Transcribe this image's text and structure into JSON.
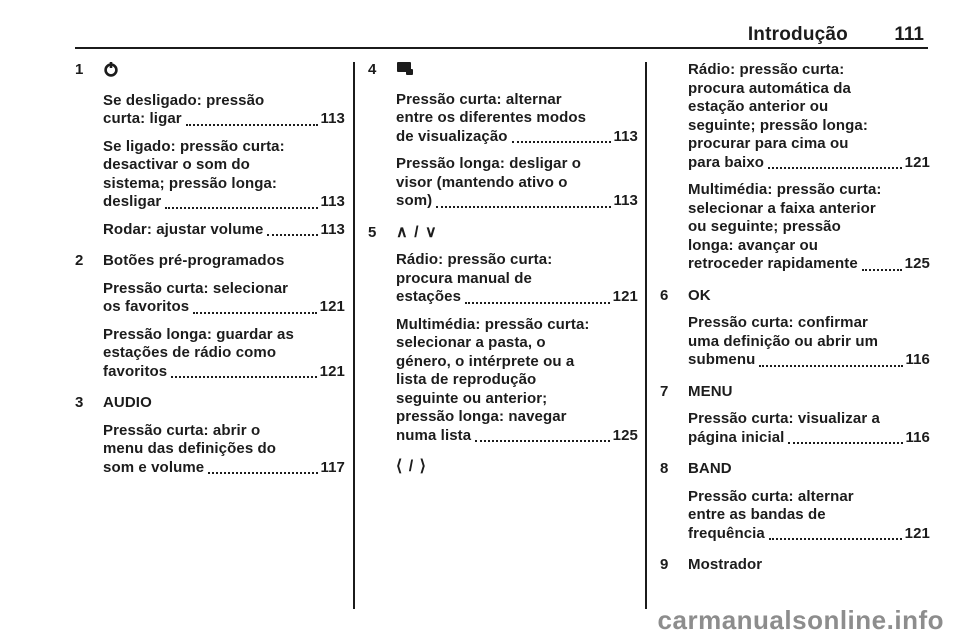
{
  "header": {
    "section_title": "Introdução",
    "page_number": "111"
  },
  "watermark": "carmanualsonline.info",
  "colors": {
    "text": "#1c1c1c",
    "rule": "#1b1b1b",
    "watermark": "#8d8d8d"
  },
  "icons": {
    "chevron_up": "∧",
    "chevron_down": "∨",
    "chevron_left": "⟨",
    "chevron_right": "⟩",
    "slash": "/"
  },
  "columns": [
    {
      "entries": [
        {
          "num": "1",
          "icon": "power-icon",
          "title": "",
          "paras": [
            {
              "lines": [
                "Se desligado: pressão",
                "curta: ligar"
              ],
              "page": "113"
            },
            {
              "lines": [
                "Se ligado: pressão curta:",
                "desactivar o som do",
                "sistema; pressão longa:",
                "desligar"
              ],
              "page": "113"
            },
            {
              "lines": [
                "Rodar: ajustar volume"
              ],
              "page": "113"
            }
          ]
        },
        {
          "num": "2",
          "icon": "",
          "title": "Botões pré-programados",
          "paras": [
            {
              "lines": [
                "Pressão curta: selecionar",
                "os favoritos"
              ],
              "page": "121"
            },
            {
              "lines": [
                "Pressão longa: guardar as",
                "estações de rádio como",
                "favoritos"
              ],
              "page": "121"
            }
          ]
        },
        {
          "num": "3",
          "icon": "",
          "title": "AUDIO",
          "paras": [
            {
              "lines": [
                "Pressão curta: abrir o",
                "menu das definições do",
                "som e volume"
              ],
              "page": "117"
            }
          ]
        }
      ]
    },
    {
      "entries": [
        {
          "num": "4",
          "icon": "display-icon",
          "title": "",
          "paras": [
            {
              "lines": [
                "Pressão curta: alternar",
                "entre os diferentes modos",
                "de visualização"
              ],
              "page": "113"
            },
            {
              "lines": [
                "Pressão longa: desligar o",
                "visor (mantendo ativo o",
                "som)"
              ],
              "page": "113"
            }
          ]
        },
        {
          "num": "5",
          "icon": "chevron-up-down-icon",
          "title": "",
          "paras": [
            {
              "lines": [
                "Rádio: pressão curta:",
                "procura manual de",
                "estações"
              ],
              "page": "121"
            },
            {
              "lines": [
                "Multimédia: pressão curta:",
                "selecionar a pasta, o",
                "género, o intérprete ou a",
                "lista de reprodução",
                "seguinte ou anterior;",
                "pressão longa: navegar",
                "numa lista"
              ],
              "page": "125"
            }
          ]
        },
        {
          "num": "",
          "icon": "chevron-left-right-icon",
          "title": "",
          "paras": []
        }
      ]
    },
    {
      "entries": [
        {
          "num": "",
          "icon": "",
          "title": "",
          "paras": [
            {
              "lines": [
                "Rádio: pressão curta:",
                "procura automática da",
                "estação anterior ou",
                "seguinte; pressão longa:",
                "procurar para cima ou",
                "para baixo"
              ],
              "page": "121"
            },
            {
              "lines": [
                "Multimédia: pressão curta:",
                "selecionar a faixa anterior",
                "ou seguinte; pressão",
                "longa: avançar ou",
                "retroceder rapidamente"
              ],
              "page": "125"
            }
          ]
        },
        {
          "num": "6",
          "icon": "",
          "title": "OK",
          "paras": [
            {
              "lines": [
                "Pressão curta: confirmar",
                "uma definição ou abrir um",
                "submenu"
              ],
              "page": "116"
            }
          ]
        },
        {
          "num": "7",
          "icon": "",
          "title": "MENU",
          "paras": [
            {
              "lines": [
                "Pressão curta: visualizar a",
                "página inicial"
              ],
              "page": "116"
            }
          ]
        },
        {
          "num": "8",
          "icon": "",
          "title": "BAND",
          "paras": [
            {
              "lines": [
                "Pressão curta: alternar",
                "entre as bandas de",
                "frequência"
              ],
              "page": "121"
            }
          ]
        },
        {
          "num": "9",
          "icon": "",
          "title": "Mostrador",
          "paras": []
        }
      ]
    }
  ]
}
